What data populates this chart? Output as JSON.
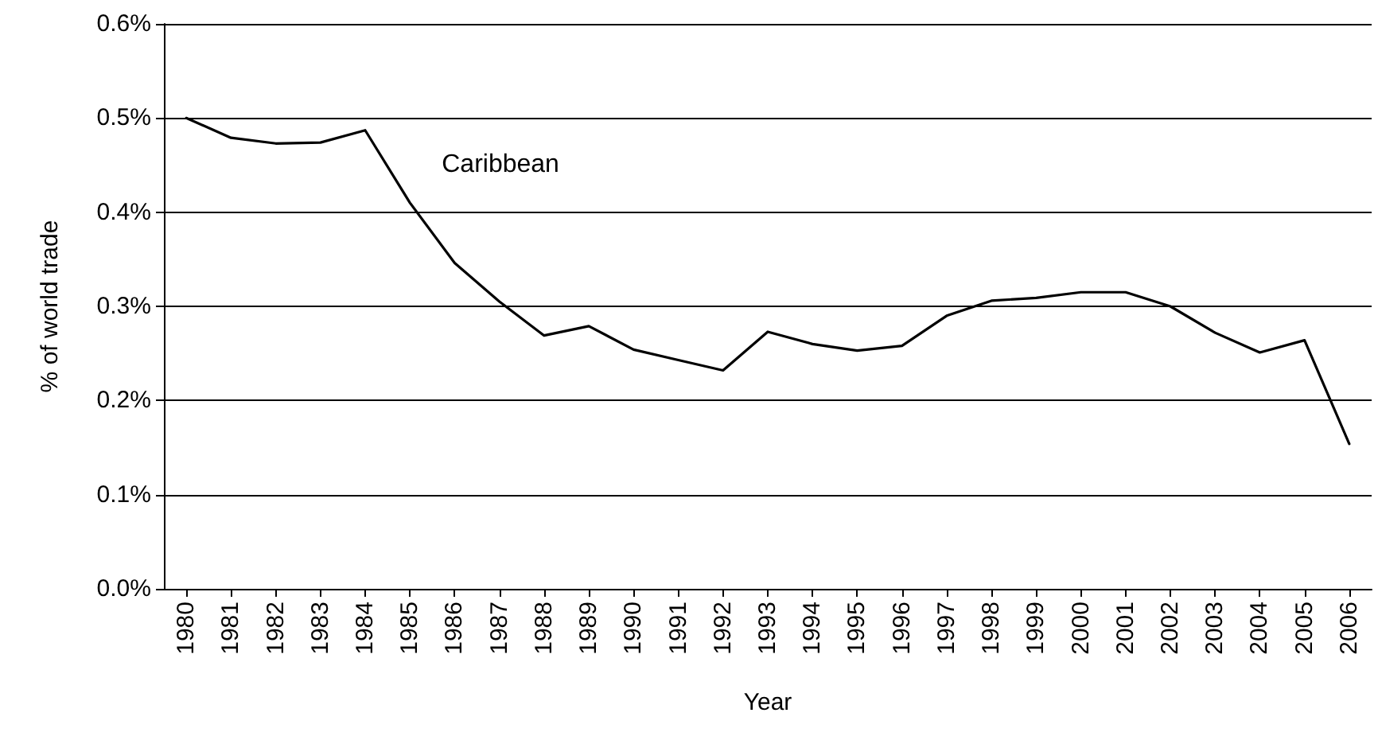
{
  "chart_data": {
    "type": "line",
    "xlabel": "Year",
    "ylabel": "% of world trade",
    "categories": [
      "1980",
      "1981",
      "1982",
      "1983",
      "1984",
      "1985",
      "1986",
      "1987",
      "1988",
      "1989",
      "1990",
      "1991",
      "1992",
      "1993",
      "1994",
      "1995",
      "1996",
      "1997",
      "1998",
      "1999",
      "2000",
      "2001",
      "2002",
      "2003",
      "2004",
      "2005",
      "2006"
    ],
    "series": [
      {
        "name": "Caribbean",
        "color": "#000000",
        "values": [
          0.5,
          0.479,
          0.473,
          0.474,
          0.487,
          0.41,
          0.346,
          0.305,
          0.269,
          0.279,
          0.254,
          0.243,
          0.232,
          0.273,
          0.26,
          0.253,
          0.258,
          0.29,
          0.306,
          0.309,
          0.315,
          0.315,
          0.3,
          0.272,
          0.251,
          0.264,
          0.154
        ]
      }
    ],
    "ylim": [
      0,
      0.6
    ],
    "yticks": [
      {
        "value": 0,
        "label": "0.0%"
      },
      {
        "value": 0.1,
        "label": "0.1%"
      },
      {
        "value": 0.2,
        "label": "0.2%"
      },
      {
        "value": 0.3,
        "label": "0.3%"
      },
      {
        "value": 0.4,
        "label": "0.4%"
      },
      {
        "value": 0.5,
        "label": "0.5%"
      },
      {
        "value": 0.6,
        "label": "0.6%"
      }
    ],
    "grid": "y",
    "legend": false,
    "marker": "none",
    "line_style": "solid"
  }
}
